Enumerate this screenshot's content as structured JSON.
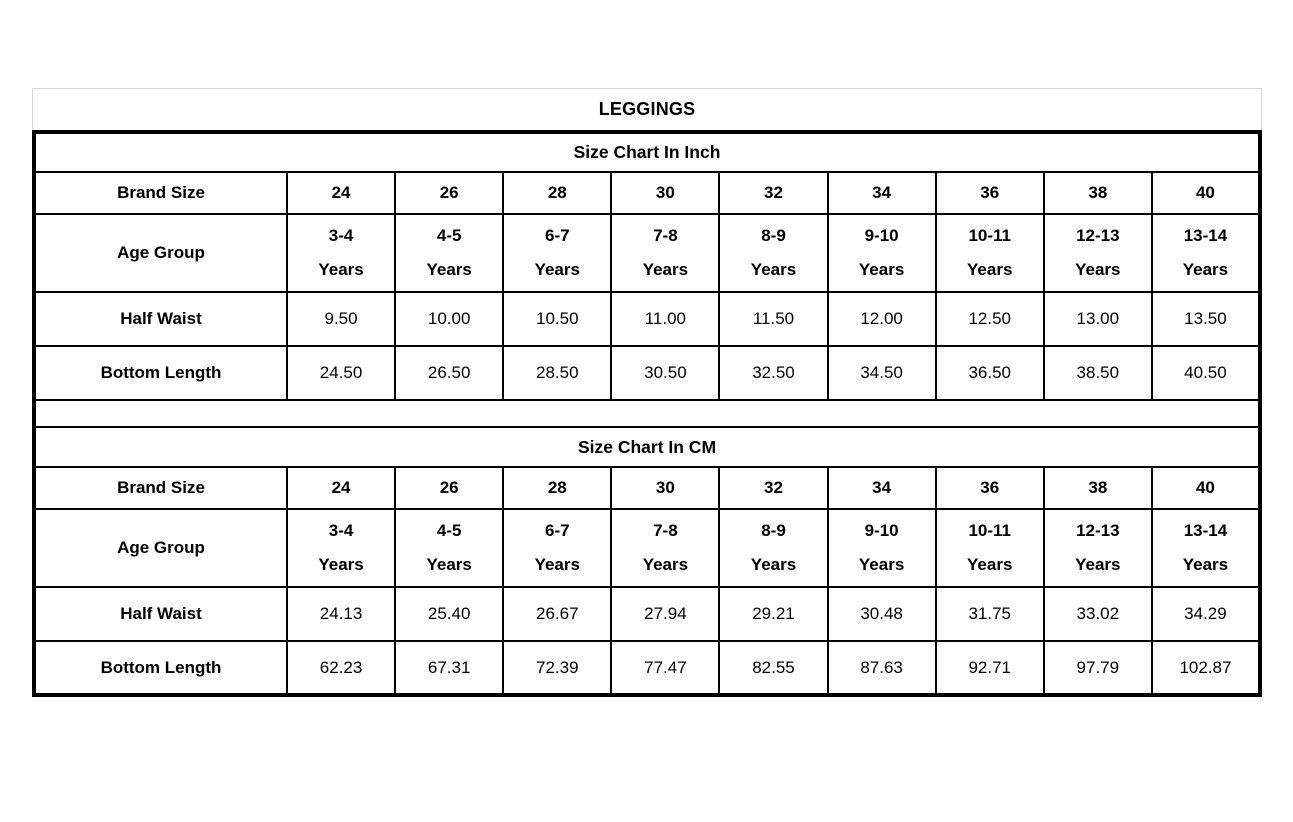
{
  "page_title": "LEGGINGS",
  "chart_data": {
    "type": "table",
    "title": "LEGGINGS",
    "columns_label": "Brand Size",
    "sections": [
      {
        "heading": "Size Chart In Inch",
        "unit": "inch",
        "rows": [
          {
            "label": "Brand Size",
            "values": [
              "24",
              "26",
              "28",
              "30",
              "32",
              "34",
              "36",
              "38",
              "40"
            ]
          },
          {
            "label": "Age Group",
            "values": [
              "3-4\nYears",
              "4-5\nYears",
              "6-7\nYears",
              "7-8\nYears",
              "8-9\nYears",
              "9-10\nYears",
              "10-11\nYears",
              "12-13\nYears",
              "13-14\nYears"
            ]
          },
          {
            "label": "Half Waist",
            "values": [
              "9.50",
              "10.00",
              "10.50",
              "11.00",
              "11.50",
              "12.00",
              "12.50",
              "13.00",
              "13.50"
            ]
          },
          {
            "label": "Bottom Length",
            "values": [
              "24.50",
              "26.50",
              "28.50",
              "30.50",
              "32.50",
              "34.50",
              "36.50",
              "38.50",
              "40.50"
            ]
          }
        ]
      },
      {
        "heading": "Size Chart In CM",
        "unit": "cm",
        "rows": [
          {
            "label": "Brand Size",
            "values": [
              "24",
              "26",
              "28",
              "30",
              "32",
              "34",
              "36",
              "38",
              "40"
            ]
          },
          {
            "label": "Age Group",
            "values": [
              "3-4\nYears",
              "4-5\nYears",
              "6-7\nYears",
              "7-8\nYears",
              "8-9\nYears",
              "9-10\nYears",
              "10-11\nYears",
              "12-13\nYears",
              "13-14\nYears"
            ]
          },
          {
            "label": "Half Waist",
            "values": [
              "24.13",
              "25.40",
              "26.67",
              "27.94",
              "29.21",
              "30.48",
              "31.75",
              "33.02",
              "34.29"
            ]
          },
          {
            "label": "Bottom Length",
            "values": [
              "62.23",
              "67.31",
              "72.39",
              "77.47",
              "82.55",
              "87.63",
              "92.71",
              "97.79",
              "102.87"
            ]
          }
        ]
      }
    ],
    "colors": {
      "text": "#000000",
      "border": "#000000",
      "title_border": "#d6d6d6",
      "background": "#ffffff"
    }
  }
}
